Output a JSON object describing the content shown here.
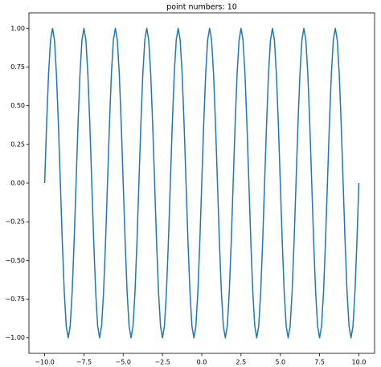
{
  "chart_data": {
    "type": "line",
    "title": "point numbers: 10",
    "x": [
      -10,
      -9.875,
      -9.75,
      -9.625,
      -9.5,
      -9.375,
      -9.25,
      -9.125,
      -9,
      -8.875,
      -8.75,
      -8.625,
      -8.5,
      -8.375,
      -8.25,
      -8.125,
      -8,
      -7.875,
      -7.75,
      -7.625,
      -7.5,
      -7.375,
      -7.25,
      -7.125,
      -7,
      -6.875,
      -6.75,
      -6.625,
      -6.5,
      -6.375,
      -6.25,
      -6.125,
      -6,
      -5.875,
      -5.75,
      -5.625,
      -5.5,
      -5.375,
      -5.25,
      -5.125,
      -5,
      -4.875,
      -4.75,
      -4.625,
      -4.5,
      -4.375,
      -4.25,
      -4.125,
      -4,
      -3.875,
      -3.75,
      -3.625,
      -3.5,
      -3.375,
      -3.25,
      -3.125,
      -3,
      -2.875,
      -2.75,
      -2.625,
      -2.5,
      -2.375,
      -2.25,
      -2.125,
      -2,
      -1.875,
      -1.75,
      -1.625,
      -1.5,
      -1.375,
      -1.25,
      -1.125,
      -1,
      -0.875,
      -0.75,
      -0.625,
      -0.5,
      -0.375,
      -0.25,
      -0.125,
      0,
      0.125,
      0.25,
      0.375,
      0.5,
      0.625,
      0.75,
      0.875,
      1,
      1.125,
      1.25,
      1.375,
      1.5,
      1.625,
      1.75,
      1.875,
      2,
      2.125,
      2.25,
      2.375,
      2.5,
      2.625,
      2.75,
      2.875,
      3,
      3.125,
      3.25,
      3.375,
      3.5,
      3.625,
      3.75,
      3.875,
      4,
      4.125,
      4.25,
      4.375,
      4.5,
      4.625,
      4.75,
      4.875,
      5,
      5.125,
      5.25,
      5.375,
      5.5,
      5.625,
      5.75,
      5.875,
      6,
      6.125,
      6.25,
      6.375,
      6.5,
      6.625,
      6.75,
      6.875,
      7,
      7.125,
      7.25,
      7.375,
      7.5,
      7.625,
      7.75,
      7.875,
      8,
      8.125,
      8.25,
      8.375,
      8.5,
      8.625,
      8.75,
      8.875,
      9,
      9.125,
      9.25,
      9.375,
      9.5,
      9.625,
      9.75,
      9.875,
      10
    ],
    "series": [
      {
        "color": "#1f77b4",
        "values": [
          0,
          0.383,
          0.707,
          0.924,
          1,
          0.924,
          0.707,
          0.383,
          0,
          -0.383,
          -0.707,
          -0.924,
          -1,
          -0.924,
          -0.707,
          -0.383,
          0,
          0.383,
          0.707,
          0.924,
          1,
          0.924,
          0.707,
          0.383,
          0,
          -0.383,
          -0.707,
          -0.924,
          -1,
          -0.924,
          -0.707,
          -0.383,
          0,
          0.383,
          0.707,
          0.924,
          1,
          0.924,
          0.707,
          0.383,
          0,
          -0.383,
          -0.707,
          -0.924,
          -1,
          -0.924,
          -0.707,
          -0.383,
          0,
          0.383,
          0.707,
          0.924,
          1,
          0.924,
          0.707,
          0.383,
          0,
          -0.383,
          -0.707,
          -0.924,
          -1,
          -0.924,
          -0.707,
          -0.383,
          0,
          0.383,
          0.707,
          0.924,
          1,
          0.924,
          0.707,
          0.383,
          0,
          -0.383,
          -0.707,
          -0.924,
          -1,
          -0.924,
          -0.707,
          -0.383,
          0,
          0.383,
          0.707,
          0.924,
          1,
          0.924,
          0.707,
          0.383,
          0,
          -0.383,
          -0.707,
          -0.924,
          -1,
          -0.924,
          -0.707,
          -0.383,
          0,
          0.383,
          0.707,
          0.924,
          1,
          0.924,
          0.707,
          0.383,
          0,
          -0.383,
          -0.707,
          -0.924,
          -1,
          -0.924,
          -0.707,
          -0.383,
          0,
          0.383,
          0.707,
          0.924,
          1,
          0.924,
          0.707,
          0.383,
          0,
          -0.383,
          -0.707,
          -0.924,
          -1,
          -0.924,
          -0.707,
          -0.383,
          0,
          0.383,
          0.707,
          0.924,
          1,
          0.924,
          0.707,
          0.383,
          0,
          -0.383,
          -0.707,
          -0.924,
          -1,
          -0.924,
          -0.707,
          -0.383,
          0,
          0.383,
          0.707,
          0.924,
          1,
          0.924,
          0.707,
          0.383,
          0,
          -0.383,
          -0.707,
          -0.924,
          -1,
          -0.924,
          -0.707,
          -0.383,
          0
        ]
      }
    ],
    "xlim": [
      -11,
      11
    ],
    "ylim": [
      -1.1,
      1.1
    ],
    "xticks": [
      {
        "value": -10,
        "label": "−10.0"
      },
      {
        "value": -7.5,
        "label": "−7.5"
      },
      {
        "value": -5,
        "label": "−5.0"
      },
      {
        "value": -2.5,
        "label": "−2.5"
      },
      {
        "value": 0,
        "label": "0.0"
      },
      {
        "value": 2.5,
        "label": "2.5"
      },
      {
        "value": 5,
        "label": "5.0"
      },
      {
        "value": 7.5,
        "label": "7.5"
      },
      {
        "value": 10,
        "label": "10.0"
      }
    ],
    "yticks": [
      {
        "value": -1,
        "label": "−1.00"
      },
      {
        "value": -0.75,
        "label": "−0.75"
      },
      {
        "value": -0.5,
        "label": "−0.50"
      },
      {
        "value": -0.25,
        "label": "−0.25"
      },
      {
        "value": 0,
        "label": "0.00"
      },
      {
        "value": 0.25,
        "label": "0.25"
      },
      {
        "value": 0.5,
        "label": "0.50"
      },
      {
        "value": 0.75,
        "label": "0.75"
      },
      {
        "value": 1,
        "label": "1.00"
      }
    ],
    "grid": false
  }
}
